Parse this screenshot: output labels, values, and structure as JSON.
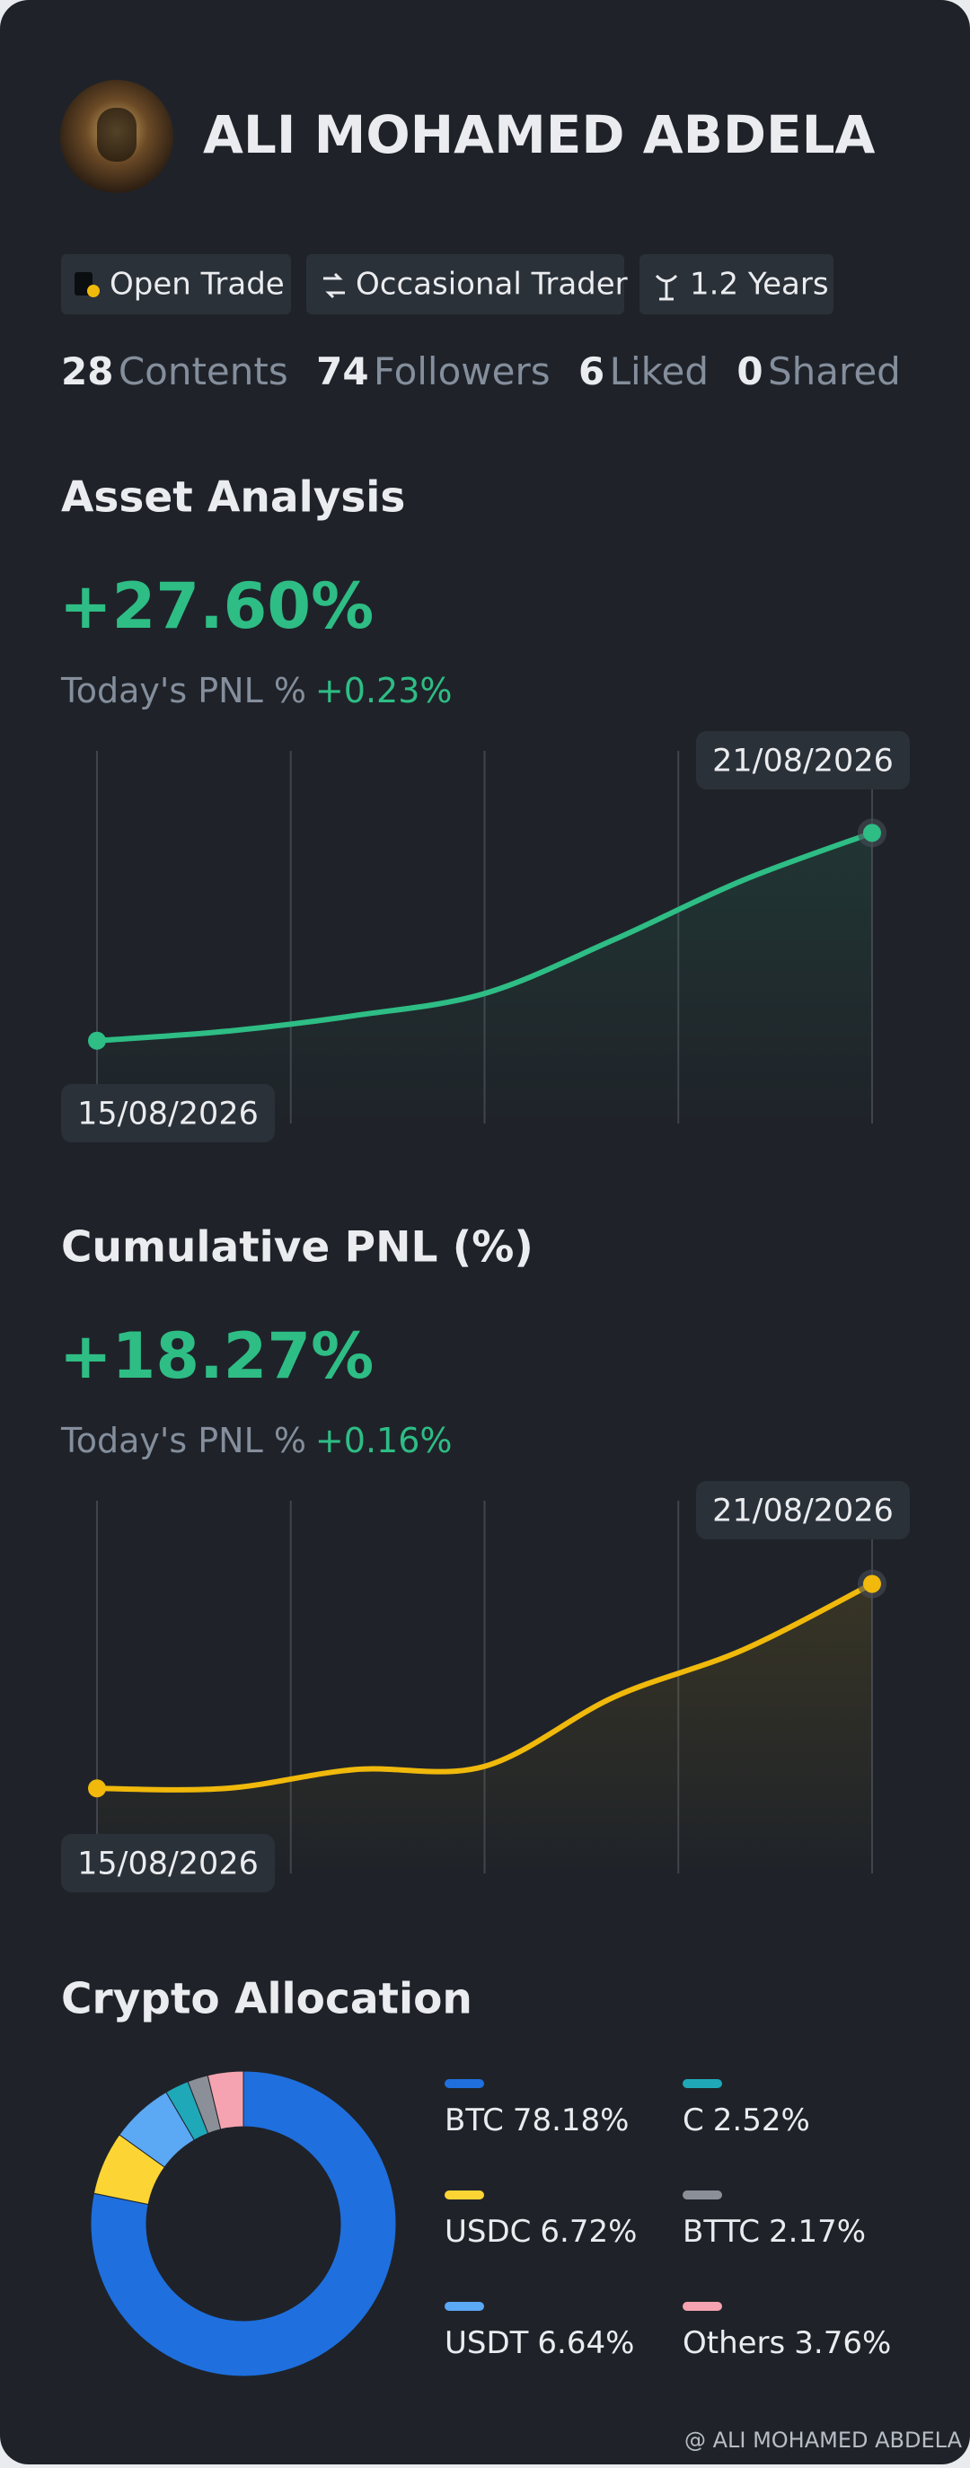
{
  "profile": {
    "name": "ALI MOHAMED ABDELA",
    "tags": [
      "Open Trade",
      "Occasional Trader",
      "1.2 Years"
    ],
    "stats": [
      {
        "count": "28",
        "label": "Contents"
      },
      {
        "count": "74",
        "label": "Followers"
      },
      {
        "count": "6",
        "label": "Liked"
      },
      {
        "count": "0",
        "label": "Shared"
      }
    ]
  },
  "chart_data": [
    {
      "type": "line",
      "title": "Asset Analysis",
      "headline": "+27.60%",
      "subtitle_label": "Today's PNL %",
      "subtitle_value": "+0.23%",
      "categories": [
        "15/08/2026",
        null,
        null,
        null,
        null,
        null,
        "21/08/2026"
      ],
      "values": [
        0,
        1.25,
        3.35,
        6.27,
        13.4,
        21.3,
        27.6
      ],
      "color": "#2ebd85",
      "ylim": [
        -11,
        38.5
      ]
    },
    {
      "type": "line",
      "title": "Cumulative PNL (%)",
      "headline": "+18.27%",
      "subtitle_label": "Today's PNL %",
      "subtitle_value": "+0.16%",
      "categories": [
        "15/08/2026",
        null,
        null,
        null,
        null,
        null,
        "21/08/2026"
      ],
      "values": [
        0,
        0,
        1.69,
        1.97,
        8.15,
        12.37,
        18.27
      ],
      "color": "#f0b90b",
      "ylim": [
        -7.6,
        25.7
      ]
    },
    {
      "type": "donut",
      "title": "Crypto Allocation",
      "categories": [
        "BTC",
        "USDC",
        "USDT",
        "C",
        "BTTC",
        "Others"
      ],
      "values": [
        78.18,
        6.72,
        6.64,
        2.52,
        2.17,
        3.76
      ],
      "value_labels": [
        "78.18%",
        "6.72%",
        "6.64%",
        "2.52%",
        "2.17%",
        "3.76%"
      ],
      "colors": [
        "#1f6fde",
        "#fcd535",
        "#5ba8f5",
        "#1fa8b8",
        "#8a8f98",
        "#f5a3b0"
      ]
    }
  ],
  "watermark": "@ ALI MOHAMED ABDELA"
}
